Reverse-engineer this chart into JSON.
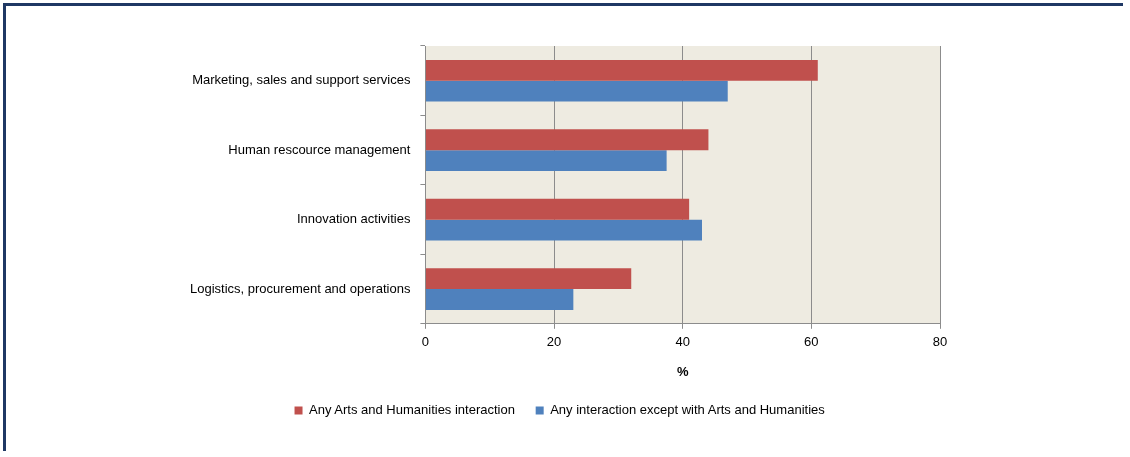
{
  "chart_data": {
    "type": "bar",
    "orientation": "horizontal",
    "xlabel": "%",
    "categories": [
      "Marketing, sales and support services",
      "Human rescource management",
      "Innovation activities",
      "Logistics, procurement and operations"
    ],
    "series": [
      {
        "name": "Any Arts and Humanities interaction",
        "color": "#c0504d",
        "values": [
          61,
          44,
          41,
          32
        ]
      },
      {
        "name": "Any interaction except with Arts and Humanities",
        "color": "#4f81bd",
        "values": [
          47,
          37.5,
          43,
          23
        ]
      }
    ],
    "xlim": [
      0,
      80
    ],
    "xticks": [
      0,
      20,
      40,
      60,
      80
    ],
    "grid": "x",
    "legend": "bottom"
  }
}
